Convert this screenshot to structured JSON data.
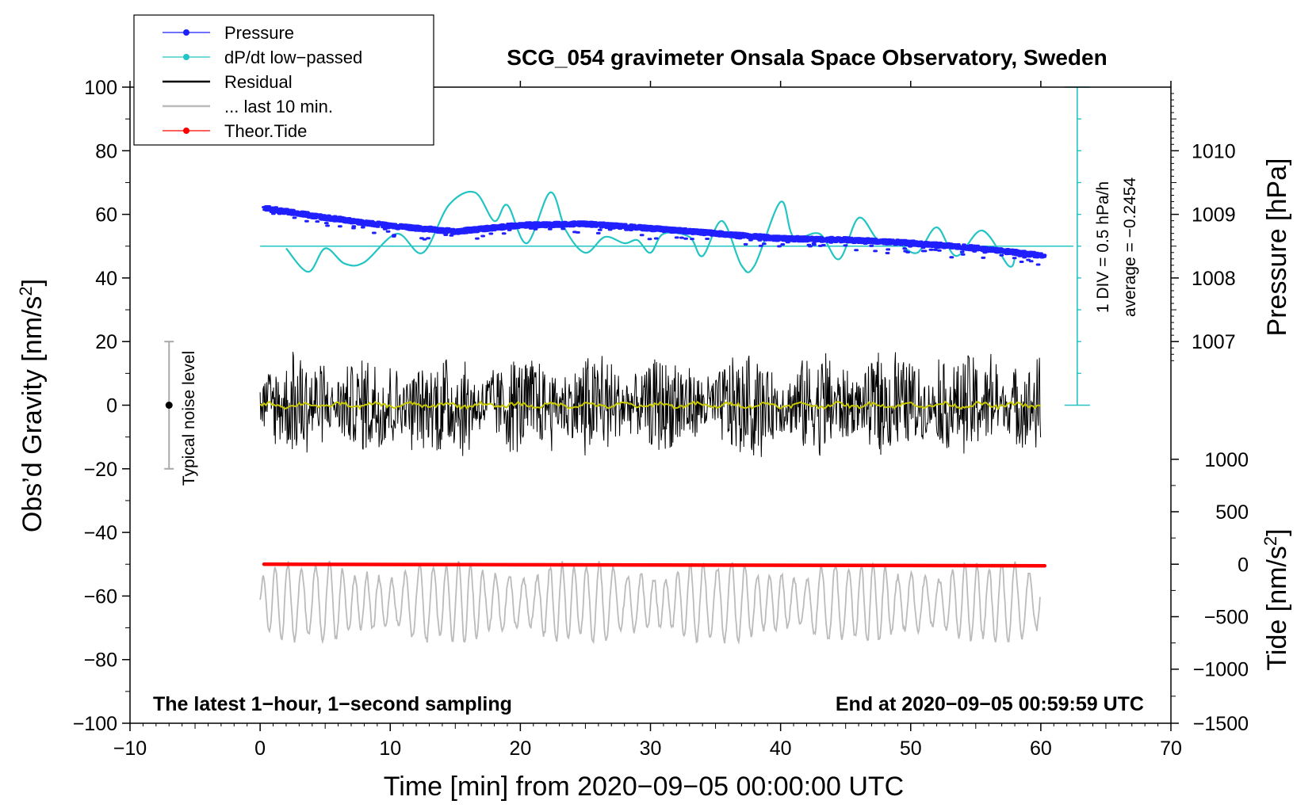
{
  "chart_data": {
    "type": "line",
    "title": "SCG_054 gravimeter Onsala Space Observatory, Sweden",
    "xlabel": "Time [min] from 2020−09−05 00:00:00 UTC",
    "ylabel_left_main": "Obs’d Gravity [nm/s",
    "ylabel_left_sup": "2",
    "ylabel_left_end": "]",
    "ylabel_right_pressure": "Pressure [hPa]",
    "ylabel_right_tide_main": "Tide [nm/s",
    "ylabel_right_tide_sup": "2",
    "ylabel_right_tide_end": "]",
    "xlim": [
      -10,
      70
    ],
    "ylim": [
      -100,
      100
    ],
    "x_ticks": [
      "−10",
      "0",
      "10",
      "20",
      "30",
      "40",
      "50",
      "60",
      "70"
    ],
    "x_tick_values": [
      -10,
      0,
      10,
      20,
      30,
      40,
      50,
      60,
      70
    ],
    "y_ticks": [
      "100",
      "80",
      "60",
      "40",
      "20",
      "0",
      "−20",
      "−40",
      "−60",
      "−80",
      "−100"
    ],
    "y_tick_values": [
      100,
      80,
      60,
      40,
      20,
      0,
      -20,
      -40,
      -60,
      -80,
      -100
    ],
    "pressure_axis": {
      "ticks": [
        "1010",
        "1009",
        "1008",
        "1007"
      ],
      "tick_values": [
        1010,
        1009,
        1008,
        1007
      ],
      "maps_to_gravity": [
        80,
        60,
        40,
        20
      ]
    },
    "tide_axis": {
      "ticks": [
        "1000",
        "500",
        "0",
        "−500",
        "−1000",
        "−1500"
      ],
      "tick_values": [
        1000,
        500,
        0,
        -500,
        -1000,
        -1500
      ],
      "maps_to_gravity": [
        -17,
        -33.5,
        -50,
        -66.5,
        -83,
        -100
      ]
    },
    "legend": [
      {
        "label": "Pressure",
        "color": "#1f1fff",
        "style": "line-dot"
      },
      {
        "label": "dP/dt low−passed",
        "color": "#22c4c4",
        "style": "line-dot"
      },
      {
        "label": "Residual",
        "color": "#000000",
        "style": "line"
      },
      {
        "label": "... last 10 min.",
        "color": "#bbbbbb",
        "style": "line"
      },
      {
        "label": "Theor.Tide",
        "color": "#ff0000",
        "style": "line-dot"
      }
    ],
    "legend_position": "top-left",
    "series": [
      {
        "name": "Pressure",
        "unit": "hPa",
        "x": [
          0.3,
          5,
          10,
          15,
          20,
          25,
          30,
          35,
          40,
          45,
          50,
          55,
          60.3
        ],
        "values": [
          1009.1,
          1008.95,
          1008.82,
          1008.73,
          1008.83,
          1008.85,
          1008.78,
          1008.7,
          1008.62,
          1008.6,
          1008.55,
          1008.47,
          1008.35
        ]
      },
      {
        "name": "dP/dt low−passed",
        "unit": "hPa/h",
        "x": [
          2,
          3.7,
          5,
          6.5,
          8,
          10.5,
          12.5,
          14.5,
          16.5,
          18,
          19,
          20.5,
          22.3,
          23.5,
          25,
          26.5,
          28,
          29,
          30,
          31,
          33,
          34,
          35.5,
          37,
          38,
          40,
          41,
          43,
          44.5,
          46,
          47.5,
          49,
          50.5,
          52,
          53.5,
          55.5,
          57.5,
          58
        ],
        "values": [
          -0.28,
          -0.65,
          -0.28,
          -0.52,
          -0.5,
          -0.05,
          -0.35,
          0.4,
          0.6,
          0.15,
          0.4,
          -0.2,
          0.6,
          0,
          -0.35,
          -0.1,
          -0.2,
          -0.15,
          -0.35,
          -0.05,
          -0.1,
          -0.4,
          0.15,
          -0.55,
          -0.55,
          0.45,
          -0.1,
          -0.05,
          -0.45,
          0.2,
          -0.15,
          -0.2,
          -0.35,
          0.05,
          -0.4,
          0,
          -0.55,
          -0.45
        ],
        "reference_line": -0.2454,
        "annotation_div": "1 DIV = 0.5 hPa/h",
        "annotation_avg": "average = −0.2454"
      },
      {
        "name": "Residual",
        "unit": "nm/s^2",
        "x_range": [
          0,
          60
        ],
        "amplitude_range": [
          -17,
          19
        ],
        "mean": 0,
        "smoothed_color": "#c8c800"
      },
      {
        "name": "... last 10 min.",
        "unit": "nm/s^2",
        "x_range": [
          0,
          60
        ],
        "center": -62,
        "amplitude_range": [
          -79,
          -43
        ]
      },
      {
        "name": "Theor.Tide",
        "unit": "nm/s^2 (tide axis)",
        "x": [
          0.3,
          60.3
        ],
        "values": [
          0,
          -15
        ]
      }
    ],
    "noise_bar": {
      "label": "Typical noise level",
      "x": -7,
      "y": 0,
      "low": -20,
      "high": 20
    },
    "note_left": "The latest 1−hour, 1−second sampling",
    "note_right": "End at 2020−09−05 00:59:59 UTC",
    "colors": {
      "pressure": "#1f1fff",
      "dpdt": "#22c4c4",
      "residual": "#000000",
      "residual_smooth": "#c8c800",
      "last10": "#bbbbbb",
      "tide": "#ff0000",
      "noise_bar": "#aaaaaa"
    }
  }
}
